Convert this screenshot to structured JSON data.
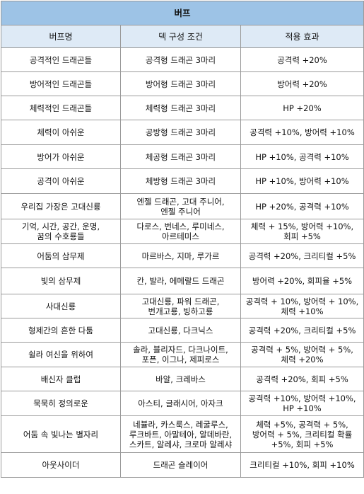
{
  "table": {
    "title": "버프",
    "headers": [
      "버프명",
      "덱 구성 조건",
      "적용 효과"
    ],
    "rows": [
      {
        "name": "공격적인 드래곤들",
        "condition": "공격형 드래곤 3마리",
        "effect": "공격력 +20%"
      },
      {
        "name": "방어적인 드래곤들",
        "condition": "방어형 드래곤 3마리",
        "effect": "방어력 +20%"
      },
      {
        "name": "체력적인 드래곤들",
        "condition": "체력형 드래곤 3마리",
        "effect": "HP +20%"
      },
      {
        "name": "체력이 아쉬운",
        "condition": "공방형 드래곤 3마리",
        "effect": "공격력 +10%, 방어력 +10%"
      },
      {
        "name": "방어가 아쉬운",
        "condition": "체공형 드래곤 3마리",
        "effect": "HP +10%, 공격력 +10%"
      },
      {
        "name": "공격이 아쉬운",
        "condition": "체방형 드래곤 3마리",
        "effect": "HP +10%, 방어력 +10%"
      },
      {
        "name": "우리집 가장은 고대신룡",
        "condition": "엔젤 드래곤, 고대 주니어,\n엔젤 주니어",
        "effect": "HP +20%, 공격력 +10%"
      },
      {
        "name": "기억, 시간, 공간, 운명,\n꿈의 수호룡들",
        "condition": "다로스, 번네스, 루미네스,\n아르테미스",
        "effect": "체력 + 15%, 방어력 +10%,\n회피 +5%"
      },
      {
        "name": "어둠의 삼무제",
        "condition": "마르바스, 지마, 루가르",
        "effect": "공격력 +20%, 크리티컬 +5%"
      },
      {
        "name": "빛의 삼무제",
        "condition": "칸, 발라, 에메랄드 드래곤",
        "effect": "방어력 +20%, 회피율 +5%"
      },
      {
        "name": "사대신룡",
        "condition": "고대신룡, 파워 드래곤,\n번개고룡, 빙하고룡",
        "effect": "공격력 + 10%, 방어력 + 10%,\n체력 +10%"
      },
      {
        "name": "형제간의 흔한 다툼",
        "condition": "고대신룡, 다크닉스",
        "effect": "공격력 +20%, 크리티컬 +5%"
      },
      {
        "name": "쉴라 여신을 위하여",
        "condition": "솔라, 블리자드, 다크나이트,\n포픈, 이그나, 제피로스",
        "effect": "공격력 + 5%, 방어력 + 5%,\n체력 +20%"
      },
      {
        "name": "배신자 클럽",
        "condition": "바알, 크레바스",
        "effect": "공격력 +20%, 회피 +5%"
      },
      {
        "name": "묵묵히 정의로운",
        "condition": "아스티, 글래시어, 아자크",
        "effect": "공격력 +10%, 방어력 +10%,\nHP +10%"
      },
      {
        "name": "어둠 속 빛나는 별자리",
        "condition": "네뷸라, 카스룩스, 레굴루스,\n루크바트, 아말테아, 알데바란,\n스카트, 알레샤, 크로마 알레샤",
        "effect": "체력 +5%, 공격력 + 5%,\n방어력 + 5%, 크리티컬 확률\n+5%, 회피 +5%"
      },
      {
        "name": "아웃사이더",
        "condition": "드래곤 슬레이어",
        "effect": "크리티컬 +10%, 회피 +10%"
      }
    ]
  }
}
